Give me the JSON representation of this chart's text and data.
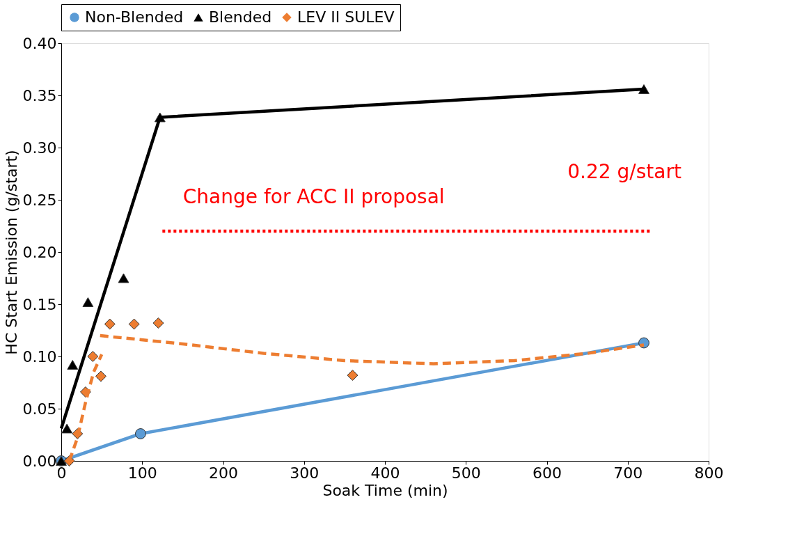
{
  "chart_data": {
    "type": "scatter",
    "xlabel": "Soak Time (min)",
    "ylabel": "HC Start Emission (g/start)",
    "xlim": [
      0,
      800
    ],
    "xticks": [
      0,
      100,
      200,
      300,
      400,
      500,
      600,
      700,
      800
    ],
    "ylim": [
      0,
      0.4
    ],
    "yticks": [
      {
        "value": 0,
        "label": "0.00"
      },
      0.05,
      {
        "value": 0.1,
        "label": "0.10"
      },
      0.15,
      {
        "value": 0.2,
        "label": "0.20"
      },
      0.25,
      {
        "value": 0.3,
        "label": "0.30"
      },
      0.35,
      {
        "value": 0.4,
        "label": "0.40"
      }
    ],
    "grid": false,
    "legend": "top",
    "series": [
      {
        "name": "Non-Blended",
        "type": "line",
        "marker": "circle",
        "line_style": "solid",
        "color": "#5b9bd5",
        "x": [
          0,
          98,
          720
        ],
        "values": [
          0,
          0.026,
          0.113
        ]
      },
      {
        "name": "Blended",
        "marker": "triangle",
        "color": "#000000",
        "x": [
          0,
          7,
          14,
          33,
          77,
          122,
          720
        ],
        "values": [
          0,
          0.031,
          0.092,
          0.152,
          0.175,
          0.329,
          0.356
        ]
      },
      {
        "name": "LEV II SULEV",
        "marker": "diamond",
        "color": "#ed7d31",
        "x": [
          10,
          20,
          30,
          39,
          49,
          60,
          90,
          120,
          360
        ],
        "values": [
          0,
          0.026,
          0.066,
          0.1,
          0.081,
          0.131,
          0.131,
          0.132,
          0.082
        ]
      },
      {
        "type": "line",
        "marker": "none",
        "line_style": "solid",
        "color": "#000000",
        "x": [
          0,
          122,
          720
        ],
        "values": [
          0.031,
          0.329,
          0.356
        ]
      },
      {
        "type": "line",
        "marker": "none",
        "line_style": "dashed",
        "color": "#ed7d31",
        "x": [
          10,
          20,
          30,
          40,
          50
        ],
        "values": [
          0,
          0.022,
          0.056,
          0.085,
          0.102
        ]
      },
      {
        "type": "line",
        "marker": "none",
        "line_style": "dashed",
        "color": "#ed7d31",
        "x": [
          48,
          150,
          250,
          350,
          460,
          560,
          650,
          720
        ],
        "values": [
          0.12,
          0.112,
          0.103,
          0.096,
          0.093,
          0.096,
          0.103,
          0.111
        ]
      },
      {
        "type": "line",
        "marker": "none",
        "line_style": "dotted",
        "color": "#ff0000",
        "x": [
          125,
          730
        ],
        "values": [
          0.22,
          0.22
        ]
      }
    ],
    "annotations": [
      "Change for ACC II proposal",
      "0.22 g/start"
    ]
  }
}
